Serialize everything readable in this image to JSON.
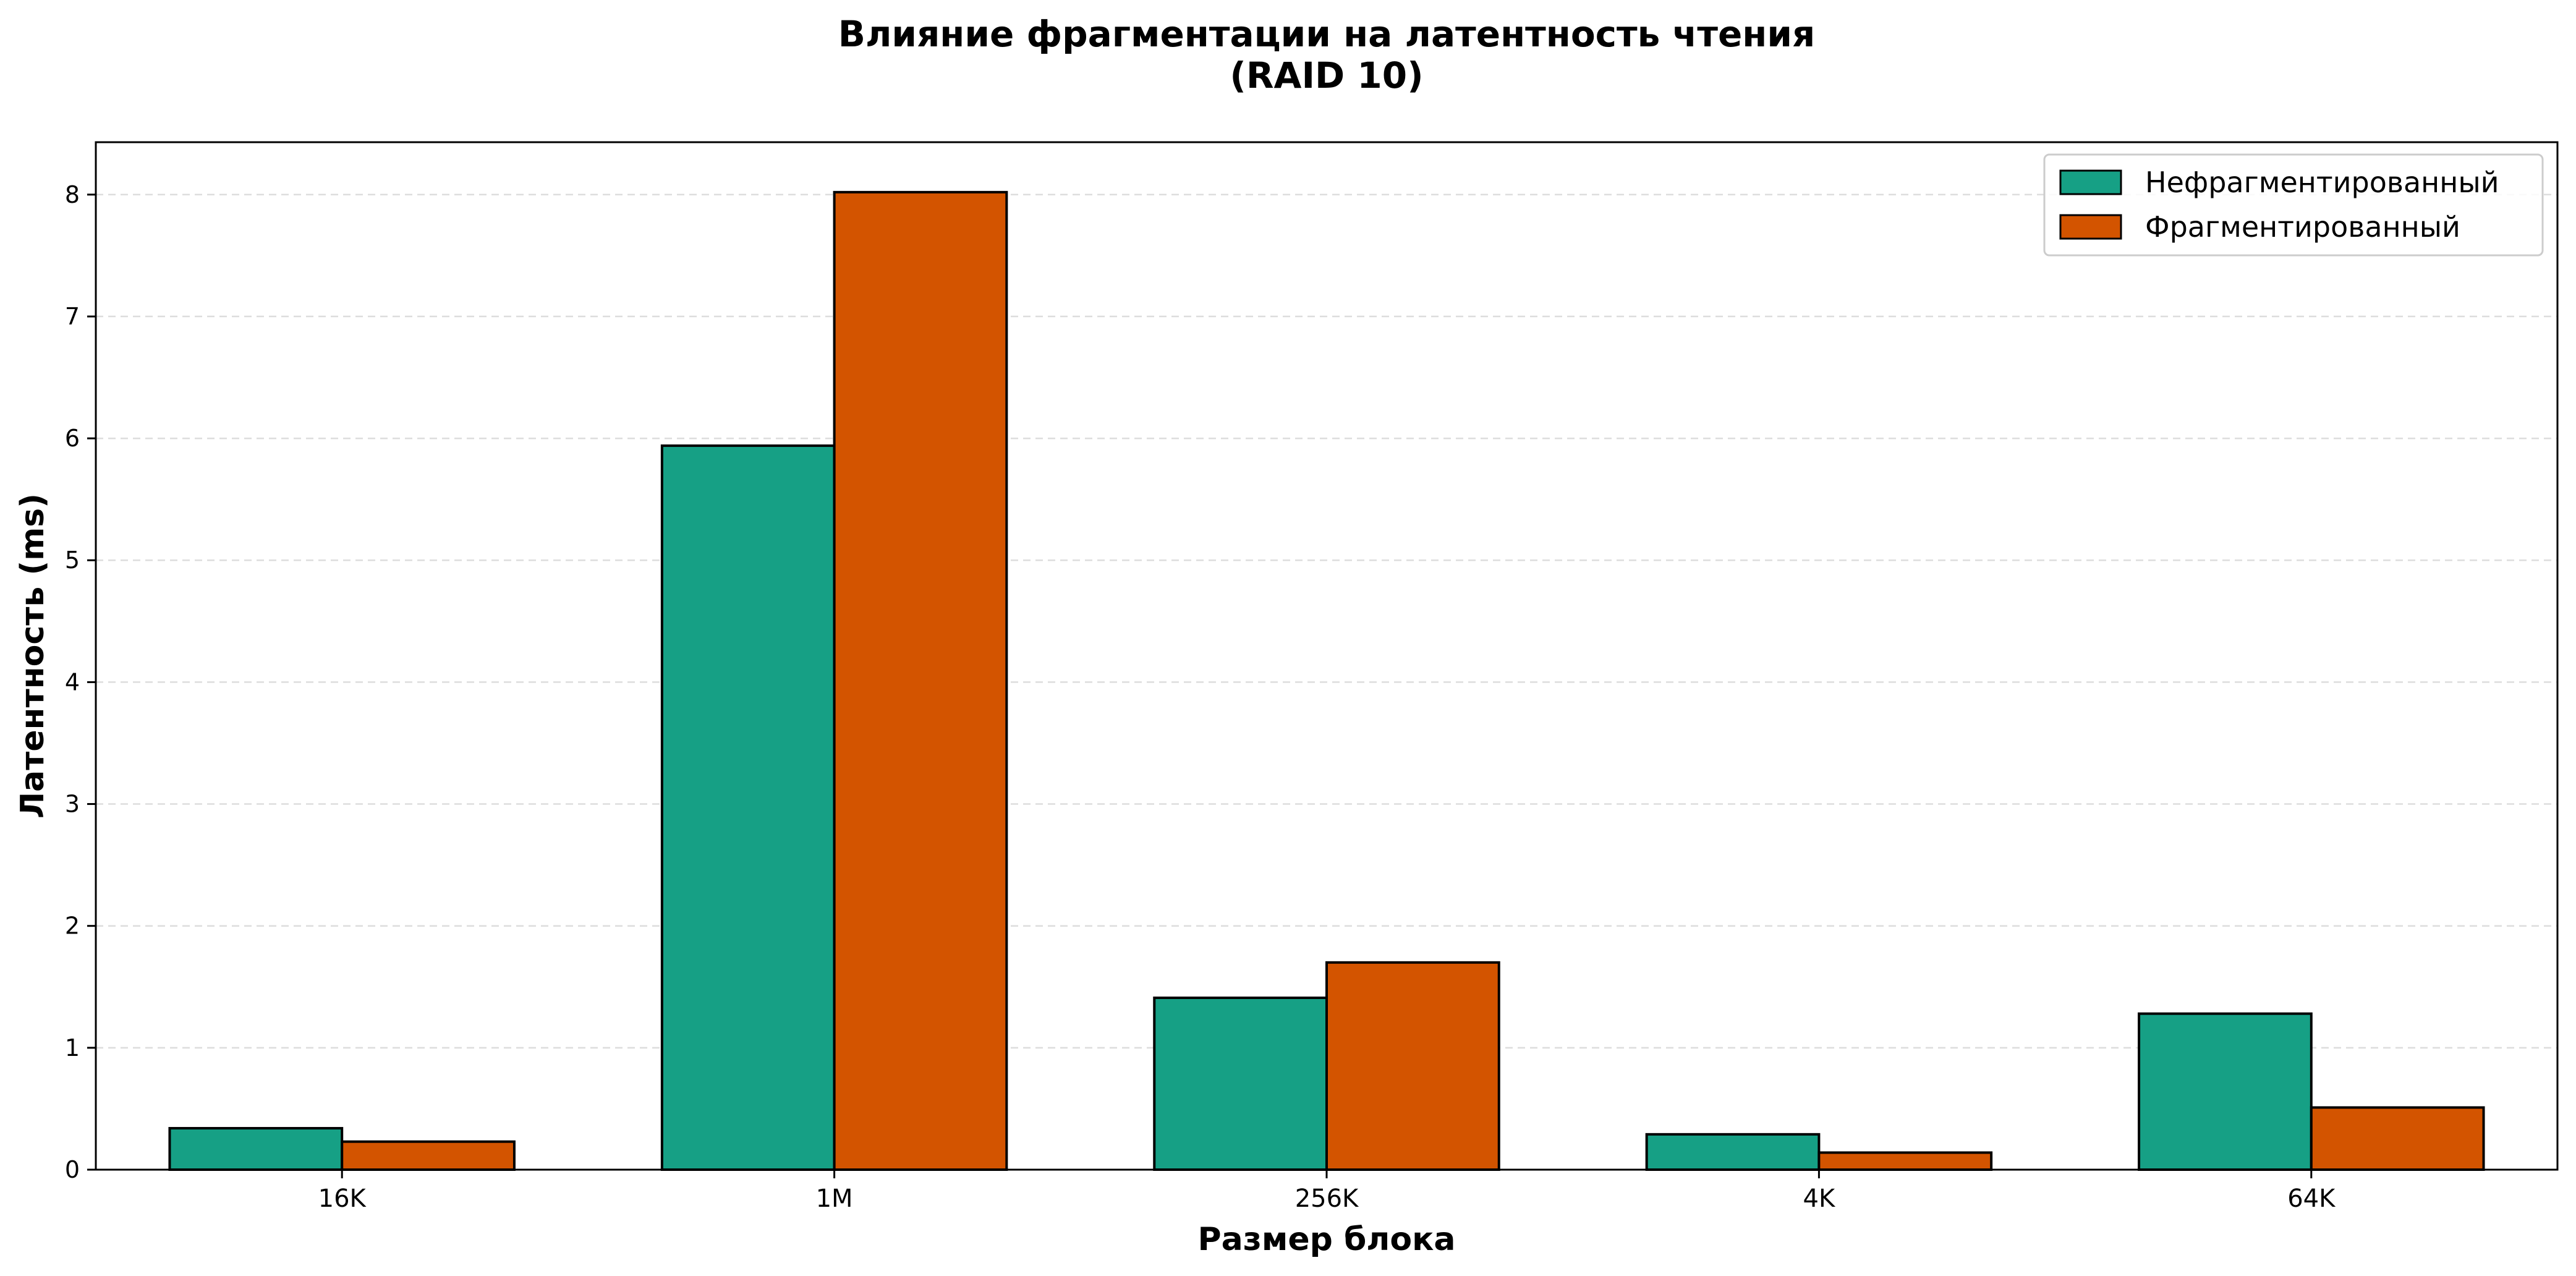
{
  "chart_data": {
    "type": "bar",
    "title": "Влияние фрагментации на латентность чтения",
    "subtitle": "(RAID 10)",
    "xlabel": "Размер блока",
    "ylabel": "Латентность (ms)",
    "categories": [
      "16K",
      "1M",
      "256K",
      "4K",
      "64K"
    ],
    "series": [
      {
        "name": "Нефрагментированный",
        "color": "#16a085",
        "values": [
          0.34,
          5.94,
          1.41,
          0.29,
          1.28
        ]
      },
      {
        "name": "Фрагментированный",
        "color": "#d35400",
        "values": [
          0.23,
          8.02,
          1.7,
          0.14,
          0.51
        ]
      }
    ],
    "ylim": [
      0,
      8.43
    ],
    "yticks": [
      0,
      1,
      2,
      3,
      4,
      5,
      6,
      7,
      8
    ],
    "grid": true,
    "legend_position": "top-right"
  }
}
